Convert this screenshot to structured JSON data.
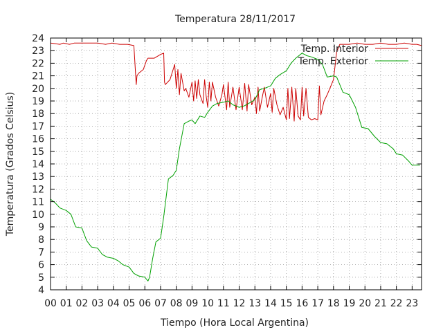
{
  "chart_data": {
    "type": "line",
    "title": "Temperatura 28/11/2017",
    "xlabel": "Tiempo (Hora Local Argentina)",
    "ylabel": "Temperatura (Grados Celsius)",
    "xlim": [
      0,
      23.6
    ],
    "ylim": [
      4,
      24
    ],
    "x_ticks": [
      "00",
      "01",
      "02",
      "03",
      "04",
      "05",
      "06",
      "07",
      "08",
      "09",
      "10",
      "11",
      "12",
      "13",
      "14",
      "15",
      "16",
      "17",
      "18",
      "19",
      "20",
      "21",
      "22",
      "23"
    ],
    "y_ticks": [
      4,
      5,
      6,
      7,
      8,
      9,
      10,
      11,
      12,
      13,
      14,
      15,
      16,
      17,
      18,
      19,
      20,
      21,
      22,
      23,
      24
    ],
    "grid": true,
    "legend_position": "top-right",
    "series": [
      {
        "name": "Temp. Interior",
        "color": "#cc0000",
        "x": [
          0,
          0.6,
          0.8,
          1.2,
          1.5,
          2,
          2.6,
          3,
          3.5,
          3.9,
          4.4,
          4.9,
          5.3,
          5.45,
          5.5,
          5.6,
          5.9,
          6.1,
          6.2,
          6.6,
          7,
          7.2,
          7.25,
          7.3,
          7.6,
          7.9,
          8,
          8.1,
          8.2,
          8.3,
          8.4,
          8.5,
          8.6,
          8.8,
          9,
          9.1,
          9.2,
          9.3,
          9.4,
          9.5,
          9.7,
          9.8,
          9.9,
          10,
          10.1,
          10.2,
          10.3,
          10.5,
          10.7,
          10.9,
          11,
          11.2,
          11.3,
          11.4,
          11.6,
          11.8,
          12,
          12.2,
          12.35,
          12.5,
          12.6,
          12.8,
          13,
          13.1,
          13.2,
          13.3,
          13.5,
          13.6,
          13.8,
          14,
          14.1,
          14.2,
          14.4,
          14.6,
          14.8,
          15,
          15.1,
          15.2,
          15.35,
          15.5,
          15.6,
          15.75,
          15.9,
          16,
          16.1,
          16.25,
          16.4,
          16.6,
          16.8,
          17,
          17.1,
          17.2,
          17.4,
          17.6,
          17.8,
          18,
          18.2,
          18.4,
          18.6,
          19,
          19.5,
          20,
          20.5,
          21,
          21.5,
          22,
          22.5,
          23,
          23.3,
          23.6
        ],
        "values": [
          23.6,
          23.5,
          23.6,
          23.5,
          23.6,
          23.6,
          23.6,
          23.6,
          23.5,
          23.6,
          23.5,
          23.5,
          23.4,
          20.3,
          21,
          21.2,
          21.5,
          22.2,
          22.4,
          22.4,
          22.7,
          22.8,
          20.5,
          20.3,
          20.7,
          21.9,
          20,
          21.5,
          19.5,
          21.2,
          20.5,
          19.8,
          20,
          19.3,
          20.5,
          19,
          20.6,
          19.2,
          20.7,
          19.5,
          18.8,
          20.7,
          19.4,
          18.5,
          20.5,
          19,
          20.5,
          19.3,
          18.6,
          19.5,
          20.3,
          18.3,
          20.5,
          18.5,
          20.1,
          18.3,
          20.1,
          18.3,
          20.4,
          18.2,
          20.3,
          18.7,
          19.3,
          18,
          20.1,
          18.2,
          19.5,
          20.1,
          18.5,
          19.6,
          18.1,
          20,
          18.7,
          17.9,
          18.5,
          17.5,
          20,
          17.6,
          20.1,
          17.4,
          20,
          17.8,
          17.5,
          20.1,
          17.8,
          20,
          17.7,
          17.5,
          17.6,
          17.5,
          20.2,
          17.9,
          19,
          19.5,
          20.1,
          20.7,
          22.9,
          23.5,
          23.5,
          23.5,
          23.6,
          23.5,
          23.5,
          23.6,
          23.5,
          23.5,
          23.6,
          23.5,
          23.5,
          23.4
        ]
      },
      {
        "name": "Temp. Exterior",
        "color": "#00a000",
        "x": [
          0,
          0.3,
          0.6,
          1,
          1.3,
          1.6,
          2,
          2.3,
          2.6,
          3,
          3.3,
          3.6,
          4,
          4.3,
          4.6,
          5,
          5.3,
          5.6,
          6,
          6.2,
          6.3,
          6.5,
          6.7,
          7,
          7.2,
          7.5,
          7.8,
          8,
          8.2,
          8.5,
          8.8,
          9,
          9.2,
          9.5,
          9.8,
          10,
          10.3,
          10.6,
          11,
          11.3,
          11.6,
          12,
          12.3,
          12.6,
          13,
          13.3,
          13.6,
          14,
          14.3,
          14.6,
          15,
          15.3,
          15.6,
          16,
          16.3,
          16.6,
          17,
          17.3,
          17.6,
          18,
          18.2,
          18.6,
          19,
          19.4,
          19.8,
          20.2,
          20.6,
          21,
          21.4,
          21.8,
          22,
          22.4,
          22.8,
          23,
          23.2,
          23.5
        ],
        "values": [
          11.2,
          10.9,
          10.5,
          10.3,
          10,
          9,
          8.9,
          7.9,
          7.4,
          7.3,
          6.8,
          6.6,
          6.5,
          6.3,
          6,
          5.8,
          5.3,
          5.1,
          5,
          4.7,
          5,
          6.5,
          7.8,
          8.1,
          9.8,
          12.8,
          13.1,
          13.5,
          15.2,
          17.2,
          17.4,
          17.5,
          17.2,
          17.8,
          17.7,
          18.1,
          18.6,
          18.8,
          18.9,
          19,
          18.7,
          18.5,
          18.6,
          18.8,
          19.1,
          19.9,
          20,
          20.2,
          20.8,
          21.1,
          21.4,
          22,
          22.4,
          22.8,
          22.6,
          22.5,
          22.3,
          21.9,
          20.9,
          21,
          20.9,
          19.7,
          19.5,
          18.5,
          16.9,
          16.8,
          16.2,
          15.7,
          15.6,
          15.2,
          14.8,
          14.7,
          14.2,
          13.9,
          13.9,
          13.9
        ]
      }
    ]
  }
}
